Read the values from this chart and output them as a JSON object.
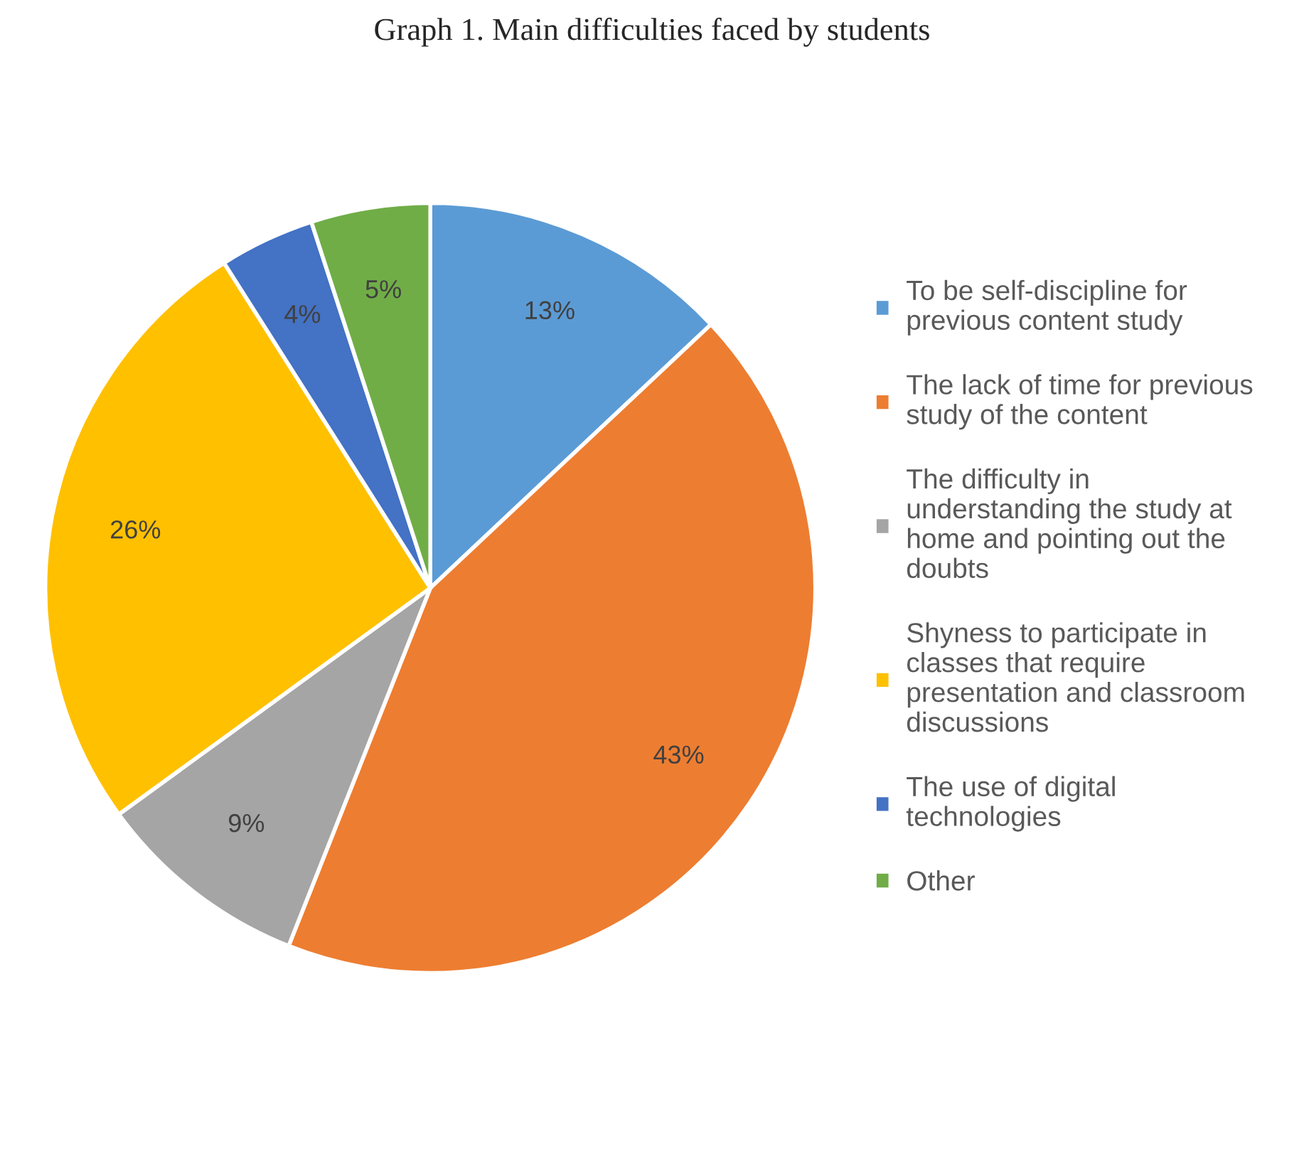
{
  "chart_data": {
    "type": "pie",
    "title": "Graph 1. Main difficulties faced by students",
    "categories": [
      "To be self-discipline for\nprevious content study",
      "The lack of time for previous\nstudy of the content",
      "The difficulty in\nunderstanding the study at\nhome and pointing out the\ndoubts",
      "Shyness to participate in\nclasses that require\npresentation and classroom\ndiscussions",
      "The use of digital\ntechnologies",
      "Other"
    ],
    "values": [
      13,
      43,
      9,
      26,
      4,
      5
    ],
    "colors": [
      "#5b9bd5",
      "#ed7d31",
      "#a5a5a5",
      "#ffc000",
      "#4472c4",
      "#70ad47"
    ],
    "value_labels": [
      "13%",
      "43%",
      "9%",
      "26%",
      "4%",
      "5%"
    ],
    "legend": "right"
  }
}
